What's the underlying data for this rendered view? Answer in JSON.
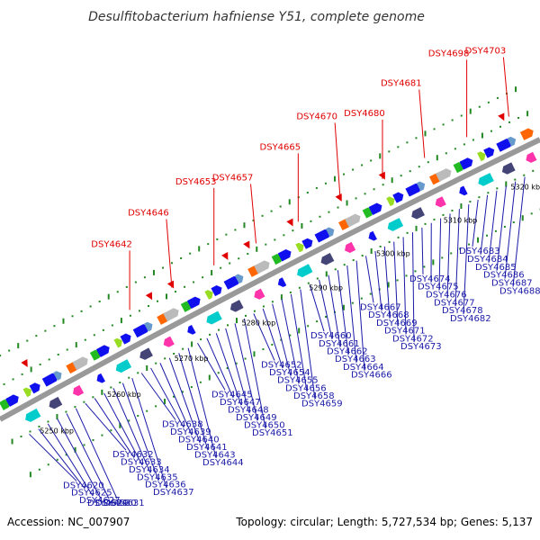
{
  "title": "Desulfitobacterium hafniense Y51, complete genome",
  "footer": {
    "accession": "Accession: NC_007907",
    "summary": "Topology: circular; Length: 5,727,534 bp; Genes: 5,137"
  },
  "colors": {
    "backbone": "#888888",
    "gene_forward": "#1010ee",
    "label_above": "#e00000",
    "label_below": "#1a1aa8",
    "tick": "#228822"
  },
  "scale_labels": [
    "5250 kbp",
    "5260 kbp",
    "5270 kbp",
    "5280 kbp",
    "5290 kbp",
    "5300 kbp",
    "5310 kbp",
    "5320 kbp"
  ],
  "labels_above": [
    "DSY4642",
    "DSY4646",
    "DSY4653",
    "DSY4657",
    "DSY4665",
    "DSY4670",
    "DSY4680",
    "DSY4681",
    "DSY4698",
    "DSY4703"
  ],
  "labels_below": [
    "DSY4620",
    "DSY4625",
    "DSY4627",
    "DSY4629",
    "DSY4630",
    "DSY4631",
    "DSY4632",
    "DSY4633",
    "DSY4634",
    "DSY4635",
    "DSY4636",
    "DSY4637",
    "DSY4638",
    "DSY4639",
    "DSY4640",
    "DSY4641",
    "DSY4643",
    "DSY4644",
    "DSY4645",
    "DSY4647",
    "DSY4648",
    "DSY4649",
    "DSY4650",
    "DSY4651",
    "DSY4652",
    "DSY4654",
    "DSY4655",
    "DSY4656",
    "DSY4658",
    "DSY4659",
    "DSY4660",
    "DSY4661",
    "DSY4662",
    "DSY4663",
    "DSY4664",
    "DSY4666",
    "DSY4667",
    "DSY4668",
    "DSY4669",
    "DSY4671",
    "DSY4672",
    "DSY4673",
    "DSY4674",
    "DSY4675",
    "DSY4676",
    "DSY4677",
    "DSY4678",
    "DSY4682",
    "DSY4683",
    "DSY4684",
    "DSY4685",
    "DSY4686",
    "DSY4687",
    "DSY4688"
  ]
}
